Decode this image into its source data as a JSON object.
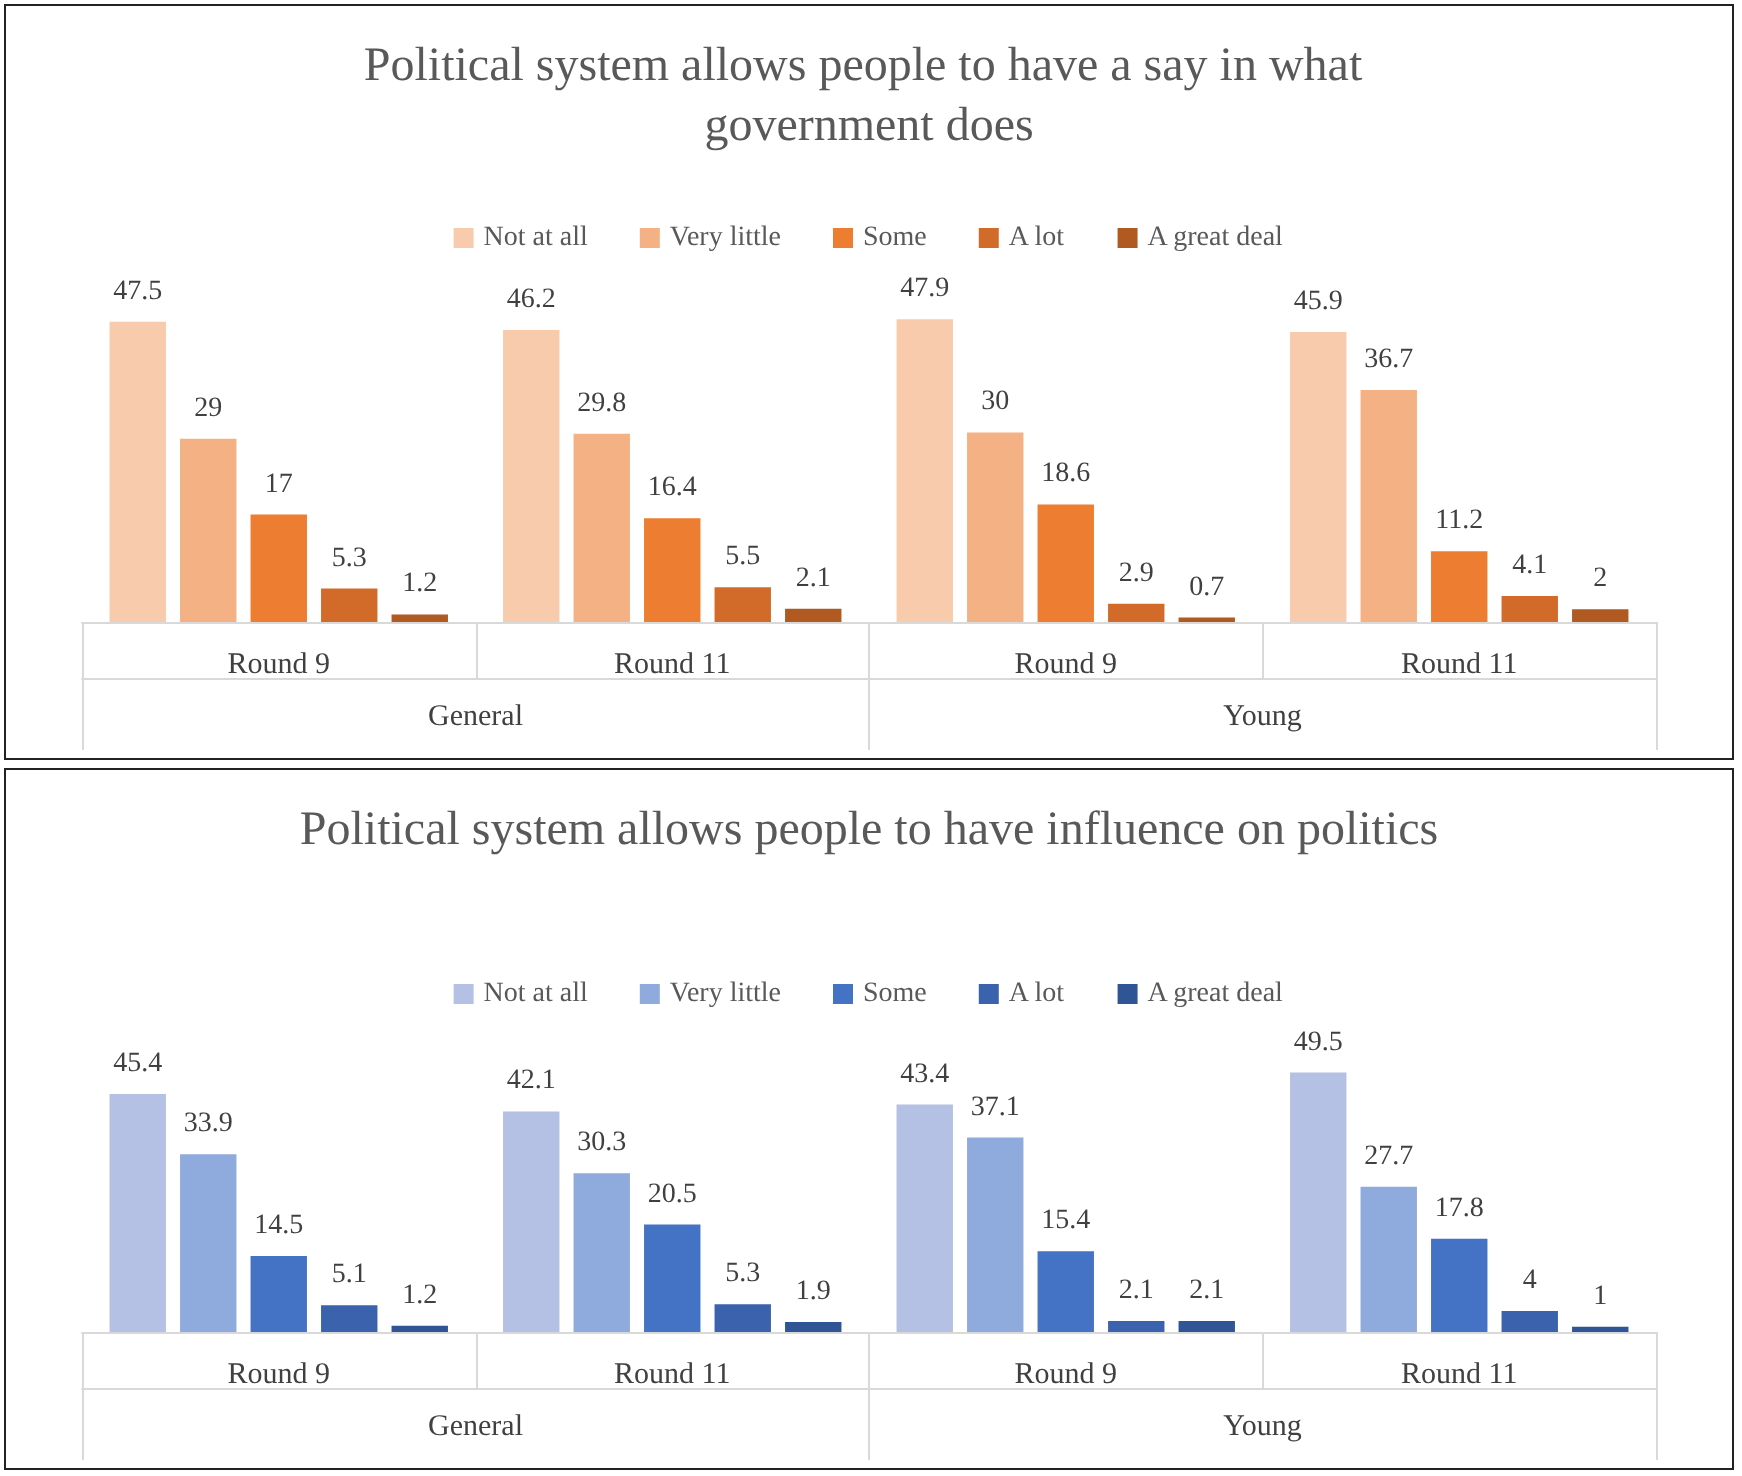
{
  "chart_data": [
    {
      "type": "bar",
      "title": "Political system allows people to have a say in what government does",
      "categories": [
        "Round 9",
        "Round 11",
        "Round 9",
        "Round 11"
      ],
      "annotations": [
        "General",
        "Young"
      ],
      "legend": "top",
      "data_labels": true,
      "series": [
        {
          "name": "Not at all",
          "color": "#f8cbad",
          "values": [
            47.5,
            46.2,
            47.9,
            45.9
          ]
        },
        {
          "name": "Very little",
          "color": "#f4b183",
          "values": [
            29,
            29.8,
            30,
            36.7
          ]
        },
        {
          "name": "Some",
          "color": "#ed7d31",
          "values": [
            17,
            16.4,
            18.6,
            11.2
          ]
        },
        {
          "name": "A lot",
          "color": "#d26b2a",
          "values": [
            5.3,
            5.5,
            2.9,
            4.1
          ]
        },
        {
          "name": "A great deal",
          "color": "#b05a22",
          "values": [
            1.2,
            2.1,
            0.7,
            2
          ]
        }
      ]
    },
    {
      "type": "bar",
      "title": "Political system allows people to have influence on politics",
      "categories": [
        "Round 9",
        "Round 11",
        "Round 9",
        "Round 11"
      ],
      "annotations": [
        "General",
        "Young"
      ],
      "legend": "top",
      "data_labels": true,
      "series": [
        {
          "name": "Not at all",
          "color": "#b4c0e4",
          "values": [
            45.4,
            42.1,
            43.4,
            49.5
          ]
        },
        {
          "name": "Very little",
          "color": "#8faadc",
          "values": [
            33.9,
            30.3,
            37.1,
            27.7
          ]
        },
        {
          "name": "Some",
          "color": "#4472c4",
          "values": [
            14.5,
            20.5,
            15.4,
            17.8
          ]
        },
        {
          "name": "A lot",
          "color": "#3a62ad",
          "values": [
            5.1,
            5.3,
            2.1,
            4
          ]
        },
        {
          "name": "A great deal",
          "color": "#2f5597",
          "values": [
            1.2,
            1.9,
            2.1,
            1
          ]
        }
      ]
    }
  ]
}
